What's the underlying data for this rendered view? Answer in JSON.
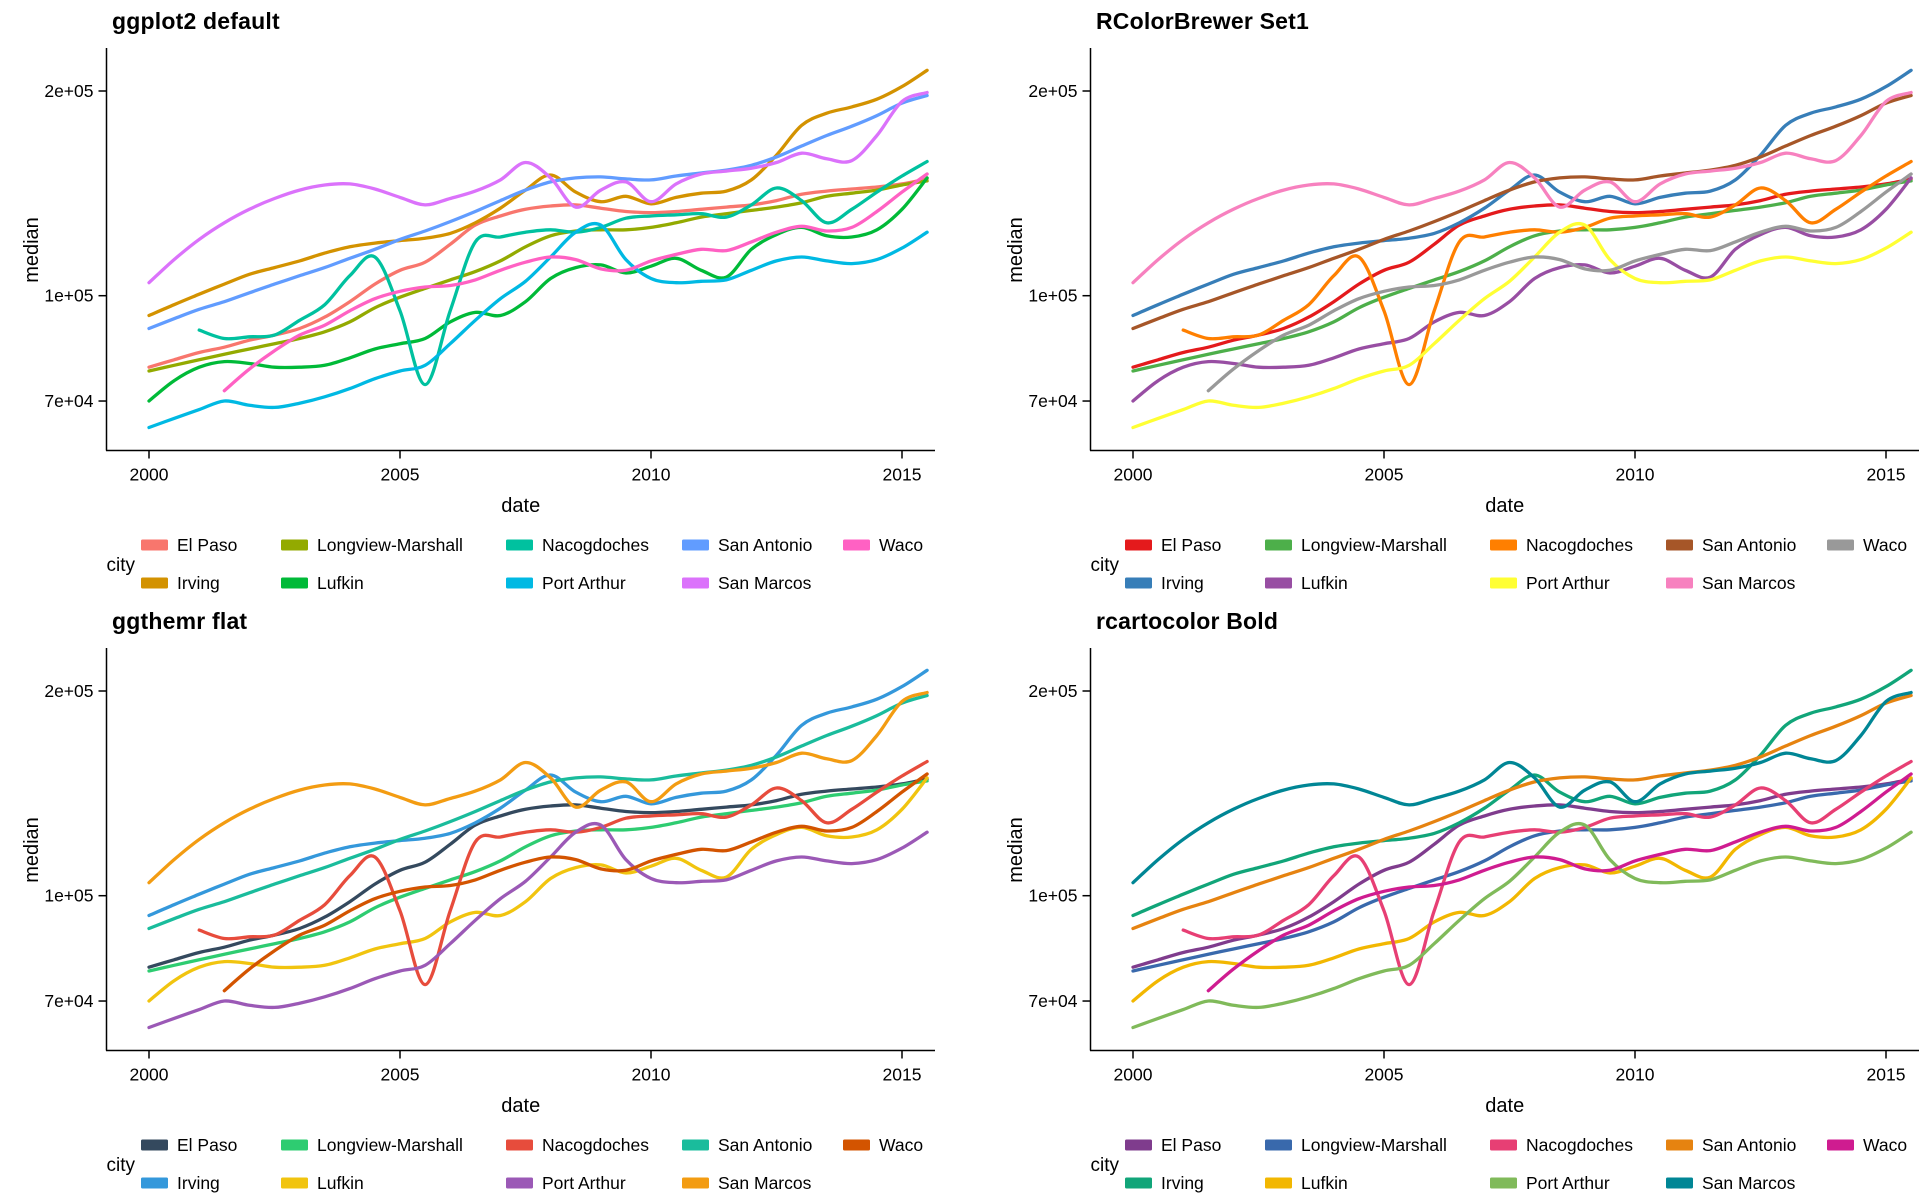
{
  "figure": {
    "description": "Four identical line charts of Texas housing median prices by city, each drawn with a different color palette",
    "background": "#ffffff",
    "text_color": "#000000"
  },
  "chart_data": {
    "type": "line",
    "xlabel": "date",
    "ylabel": "median",
    "legend_title": "city",
    "x_scale": "linear",
    "y_scale": "log10",
    "grid": "off",
    "legend_position": "bottom",
    "x_ticks": [
      2000,
      2005,
      2010,
      2015
    ],
    "y_ticks": [
      {
        "value": 200000,
        "label": "2e+05"
      },
      {
        "value": 100000,
        "label": "1e+05"
      },
      {
        "value": 70000,
        "label": "7e+04"
      }
    ],
    "xlim": [
      1999.4,
      2016.1
    ],
    "ylim": [
      60000,
      230000
    ],
    "x": [
      2000,
      2000.5,
      2001,
      2001.5,
      2002,
      2002.5,
      2003,
      2003.5,
      2004,
      2004.5,
      2005,
      2005.5,
      2006,
      2006.5,
      2007,
      2007.5,
      2008,
      2008.5,
      2009,
      2009.5,
      2010,
      2010.5,
      2011,
      2011.5,
      2012,
      2012.5,
      2013,
      2013.5,
      2014,
      2014.5,
      2015,
      2015.5
    ],
    "series": [
      {
        "name": "El Paso",
        "values": [
          78500,
          80500,
          82500,
          84000,
          86000,
          87500,
          89500,
          93000,
          98000,
          104000,
          109000,
          112000,
          119000,
          127000,
          131000,
          134000,
          135500,
          136000,
          134500,
          133000,
          132500,
          133000,
          134000,
          135000,
          136000,
          138000,
          141000,
          142500,
          143500,
          144500,
          146000,
          148500
        ]
      },
      {
        "name": "Irving",
        "values": [
          93500,
          97000,
          100500,
          104000,
          107500,
          110000,
          112500,
          115500,
          118000,
          119500,
          120500,
          121500,
          123500,
          128000,
          134500,
          143000,
          150500,
          142000,
          137500,
          140000,
          136500,
          139500,
          141500,
          142500,
          148000,
          161000,
          178000,
          185500,
          189500,
          194500,
          203000,
          214500
        ]
      },
      {
        "name": "Longview-Marshall",
        "values": [
          77500,
          79000,
          80500,
          82000,
          83500,
          85000,
          86500,
          88500,
          91500,
          96000,
          99500,
          102500,
          105500,
          108500,
          112500,
          118000,
          122500,
          124500,
          125000,
          125000,
          126000,
          128000,
          130500,
          132000,
          133500,
          135000,
          137000,
          140000,
          141500,
          143000,
          145500,
          147500
        ]
      },
      {
        "name": "Lufkin",
        "values": [
          70000,
          75000,
          78500,
          80000,
          79500,
          78500,
          78500,
          79000,
          81000,
          83500,
          85000,
          86500,
          91500,
          94500,
          93500,
          98000,
          106000,
          110000,
          111000,
          108000,
          110500,
          113500,
          109000,
          106500,
          117000,
          123000,
          126000,
          122500,
          122000,
          125000,
          134000,
          149000
        ]
      },
      {
        "name": "Nacogdoches",
        "values": [
          null,
          null,
          89000,
          86500,
          87000,
          87500,
          92000,
          97000,
          107000,
          114000,
          95000,
          74000,
          95000,
          120000,
          122000,
          124000,
          125000,
          124000,
          126000,
          130000,
          131000,
          131500,
          132000,
          130500,
          136000,
          144000,
          138000,
          128000,
          134000,
          142000,
          150000,
          157500
        ]
      },
      {
        "name": "Port Arthur",
        "values": [
          64000,
          66000,
          68000,
          70000,
          69000,
          68500,
          69500,
          71000,
          73000,
          75500,
          77500,
          79000,
          85000,
          92000,
          99000,
          105000,
          114000,
          124000,
          127000,
          113000,
          106000,
          104500,
          105000,
          105500,
          109000,
          112500,
          114000,
          112500,
          111500,
          113000,
          117500,
          124000
        ]
      },
      {
        "name": "San Antonio",
        "values": [
          89500,
          92500,
          95500,
          98000,
          101000,
          104000,
          107000,
          110000,
          113500,
          117000,
          121000,
          124500,
          128500,
          133000,
          138000,
          143000,
          147000,
          149000,
          149500,
          148500,
          148000,
          150000,
          151500,
          153000,
          155500,
          160000,
          166000,
          172000,
          177500,
          184000,
          192000,
          197000
        ]
      },
      {
        "name": "San Marcos",
        "values": [
          104500,
          113000,
          121000,
          128000,
          134000,
          139000,
          143000,
          145500,
          146000,
          143500,
          139500,
          136000,
          139000,
          142500,
          148000,
          157000,
          149000,
          135000,
          143000,
          147000,
          137500,
          146000,
          151000,
          152500,
          154000,
          157000,
          162000,
          159000,
          158000,
          172000,
          193000,
          199000
        ]
      },
      {
        "name": "Waco",
        "values": [
          null,
          null,
          null,
          72500,
          78000,
          83000,
          87500,
          90500,
          95000,
          99000,
          101500,
          103000,
          103500,
          105500,
          109000,
          112000,
          114000,
          113000,
          109500,
          109000,
          112500,
          115000,
          117000,
          116500,
          120000,
          124000,
          126500,
          124500,
          126000,
          133000,
          142000,
          151000
        ]
      }
    ],
    "panels": [
      {
        "title": "ggplot2 default",
        "colors": {
          "El Paso": "#F8766D",
          "Irving": "#D39200",
          "Longview-Marshall": "#93AA00",
          "Lufkin": "#00BA38",
          "Nacogdoches": "#00C19F",
          "Port Arthur": "#00B9E3",
          "San Antonio": "#619CFF",
          "San Marcos": "#DB72FB",
          "Waco": "#FF61C3"
        }
      },
      {
        "title": "RColorBrewer Set1",
        "colors": {
          "El Paso": "#E41A1C",
          "Irving": "#377EB8",
          "Longview-Marshall": "#4DAF4A",
          "Lufkin": "#984EA3",
          "Nacogdoches": "#FF7F00",
          "Port Arthur": "#FFFF33",
          "San Antonio": "#A65628",
          "San Marcos": "#F781BF",
          "Waco": "#999999"
        }
      },
      {
        "title": "ggthemr flat",
        "colors": {
          "El Paso": "#34495E",
          "Irving": "#3498DB",
          "Longview-Marshall": "#2ECC71",
          "Lufkin": "#F1C40F",
          "Nacogdoches": "#E74C3C",
          "Port Arthur": "#9B59B6",
          "San Antonio": "#1ABC9C",
          "San Marcos": "#F39C12",
          "Waco": "#D35400"
        }
      },
      {
        "title": "rcartocolor Bold",
        "colors": {
          "El Paso": "#7F3C8D",
          "Irving": "#11A579",
          "Longview-Marshall": "#3969AC",
          "Lufkin": "#F2B701",
          "Nacogdoches": "#E73F74",
          "Port Arthur": "#80BA5A",
          "San Antonio": "#E68310",
          "San Marcos": "#008695",
          "Waco": "#CF1C90"
        }
      }
    ]
  }
}
